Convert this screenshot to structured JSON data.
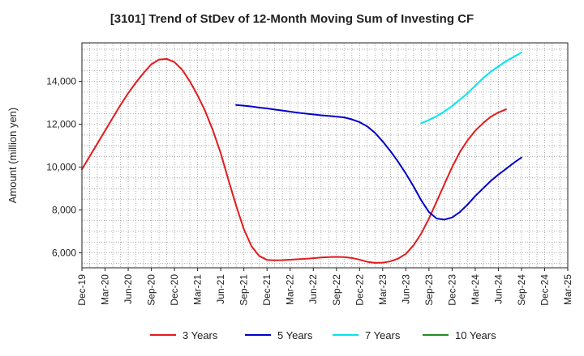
{
  "chart_data": {
    "type": "line",
    "title": "[3101]  Trend of StDev of 12-Month Moving Sum of Investing CF",
    "xlabel": "",
    "ylabel": "Amount (million yen)",
    "ylim": [
      5300,
      15800
    ],
    "yticks": [
      6000,
      8000,
      10000,
      12000,
      14000
    ],
    "ytick_labels": [
      "6,000",
      "8,000",
      "10,000",
      "12,000",
      "14,000"
    ],
    "x_tick_labels": [
      "Dec-19",
      "Mar-20",
      "Jun-20",
      "Sep-20",
      "Dec-20",
      "Mar-21",
      "Jun-21",
      "Sep-21",
      "Dec-21",
      "Mar-22",
      "Jun-22",
      "Sep-22",
      "Dec-22",
      "Mar-23",
      "Jun-23",
      "Sep-23",
      "Dec-23",
      "Mar-24",
      "Jun-24",
      "Sep-24",
      "Dec-24",
      "Mar-25"
    ],
    "x_months_range": [
      "2019-12",
      "2025-03"
    ],
    "grid": true,
    "legend_position": "bottom",
    "series": [
      {
        "name": "3 Years",
        "color": "#e41a1c",
        "start": "2019-12",
        "values": [
          9900,
          10500,
          11100,
          11700,
          12300,
          12900,
          13450,
          13950,
          14400,
          14800,
          15020,
          15050,
          14900,
          14550,
          14000,
          13350,
          12600,
          11700,
          10650,
          9400,
          8200,
          7100,
          6300,
          5850,
          5670,
          5650,
          5660,
          5680,
          5700,
          5720,
          5750,
          5780,
          5800,
          5810,
          5800,
          5760,
          5680,
          5580,
          5530,
          5540,
          5600,
          5730,
          5950,
          6350,
          6900,
          7600,
          8400,
          9200,
          10000,
          10700,
          11250,
          11700,
          12050,
          12350,
          12550,
          12700
        ]
      },
      {
        "name": "5 Years",
        "color": "#0000cc",
        "start": "2021-08",
        "values": [
          12900,
          12870,
          12830,
          12780,
          12740,
          12690,
          12640,
          12590,
          12540,
          12500,
          12460,
          12420,
          12390,
          12360,
          12320,
          12230,
          12100,
          11900,
          11600,
          11200,
          10750,
          10250,
          9700,
          9100,
          8450,
          7900,
          7600,
          7550,
          7650,
          7900,
          8250,
          8650,
          9000,
          9350,
          9650,
          9920,
          10200,
          10450
        ]
      },
      {
        "name": "7 Years",
        "color": "#00e5ee",
        "start": "2023-08",
        "values": [
          12050,
          12200,
          12380,
          12600,
          12850,
          13150,
          13450,
          13800,
          14150,
          14450,
          14700,
          14950,
          15150,
          15350
        ]
      },
      {
        "name": "10 Years",
        "color": "#228b22",
        "start": "2024-09",
        "values": []
      }
    ]
  }
}
